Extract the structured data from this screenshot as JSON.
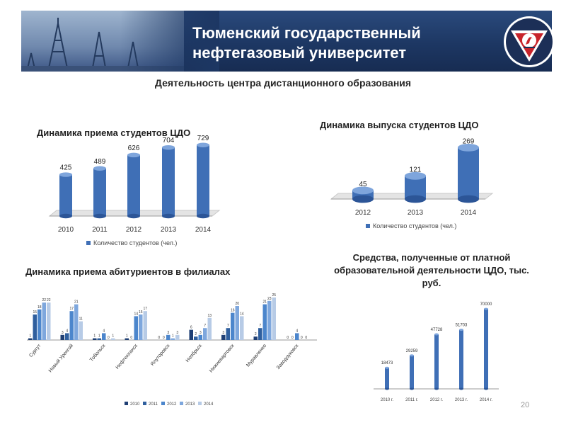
{
  "header": {
    "title_line1": "Тюменский государственный",
    "title_line2": "нефтегазовый университет"
  },
  "subtitle": "Деятельность центра дистанционного образования",
  "page_number": "20",
  "colors": {
    "banner": "#1d3763",
    "bar": "#3f6fb6",
    "bar_dark": "#2c5597"
  },
  "chart_data": [
    {
      "type": "bar",
      "title": "Динамика приема студентов ЦДО",
      "categories": [
        "2010",
        "2011",
        "2012",
        "2013",
        "2014"
      ],
      "series": [
        {
          "name": "Количество студентов (чел.)",
          "values": [
            425,
            489,
            626,
            704,
            729
          ]
        }
      ],
      "ylim": [
        0,
        800
      ],
      "legend": "bottom"
    },
    {
      "type": "bar",
      "title": "Динамика выпуска студентов ЦДО",
      "categories": [
        "2012",
        "2013",
        "2014"
      ],
      "series": [
        {
          "name": "Количество студентов (чел.)",
          "values": [
            45,
            121,
            269
          ]
        }
      ],
      "ylim": [
        0,
        300
      ],
      "legend": "bottom"
    },
    {
      "type": "bar",
      "title": "Динамика приема абитуриентов в филиалах",
      "categories": [
        "Сургут",
        "Новый Уренгой",
        "Тобольск",
        "Нефтеюганск",
        "Ялуторовск",
        "Ноябрьск",
        "Нижневартовск",
        "Муравленко",
        "Заводоуковск"
      ],
      "series": [
        {
          "name": "2010",
          "values": [
            1,
            3,
            1,
            1,
            0,
            6,
            3,
            2,
            0
          ]
        },
        {
          "name": "2011",
          "values": [
            15,
            4,
            1,
            0,
            0,
            2,
            7,
            7,
            0
          ]
        },
        {
          "name": "2012",
          "values": [
            18,
            17,
            4,
            14,
            3,
            3,
            16,
            21,
            4
          ]
        },
        {
          "name": "2013",
          "values": [
            22,
            21,
            0,
            15,
            1,
            7,
            20,
            23,
            0
          ]
        },
        {
          "name": "2014",
          "values": [
            22,
            11,
            1,
            17,
            3,
            13,
            14,
            25,
            0
          ]
        }
      ],
      "legend": "bottom"
    },
    {
      "type": "bar",
      "title": "Средства, полученные от платной образовательной деятельности ЦДО, тыс. руб.",
      "title_lines": [
        "Средства, полученные от платной",
        "образовательной деятельности ЦДО, тыс.",
        "руб."
      ],
      "categories": [
        "2010 г.",
        "2011 г.",
        "2012 г.",
        "2013 г.",
        "2014 г."
      ],
      "series": [
        {
          "values": [
            18473,
            29259,
            47728,
            51703,
            70000
          ]
        }
      ],
      "ylim": [
        0,
        75000
      ]
    }
  ]
}
